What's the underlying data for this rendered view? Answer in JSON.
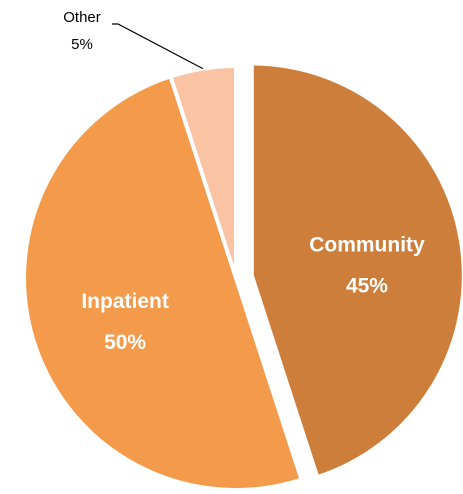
{
  "chart_data": {
    "type": "pie",
    "title": "",
    "slices": [
      {
        "name": "Community",
        "value": 45,
        "label": "45%",
        "color": "#cd7e3a",
        "exploded": true
      },
      {
        "name": "Inpatient",
        "value": 50,
        "label": "50%",
        "color": "#f49a4b",
        "exploded": false
      },
      {
        "name": "Other",
        "value": 5,
        "label": "5%",
        "color": "#f9c3a4",
        "exploded": false
      }
    ],
    "start_angle_deg": 0,
    "direction": "clockwise",
    "legend": "none",
    "label_placement": {
      "Community": "inside",
      "Inpatient": "inside",
      "Other": "outside-with-leader-line"
    }
  }
}
